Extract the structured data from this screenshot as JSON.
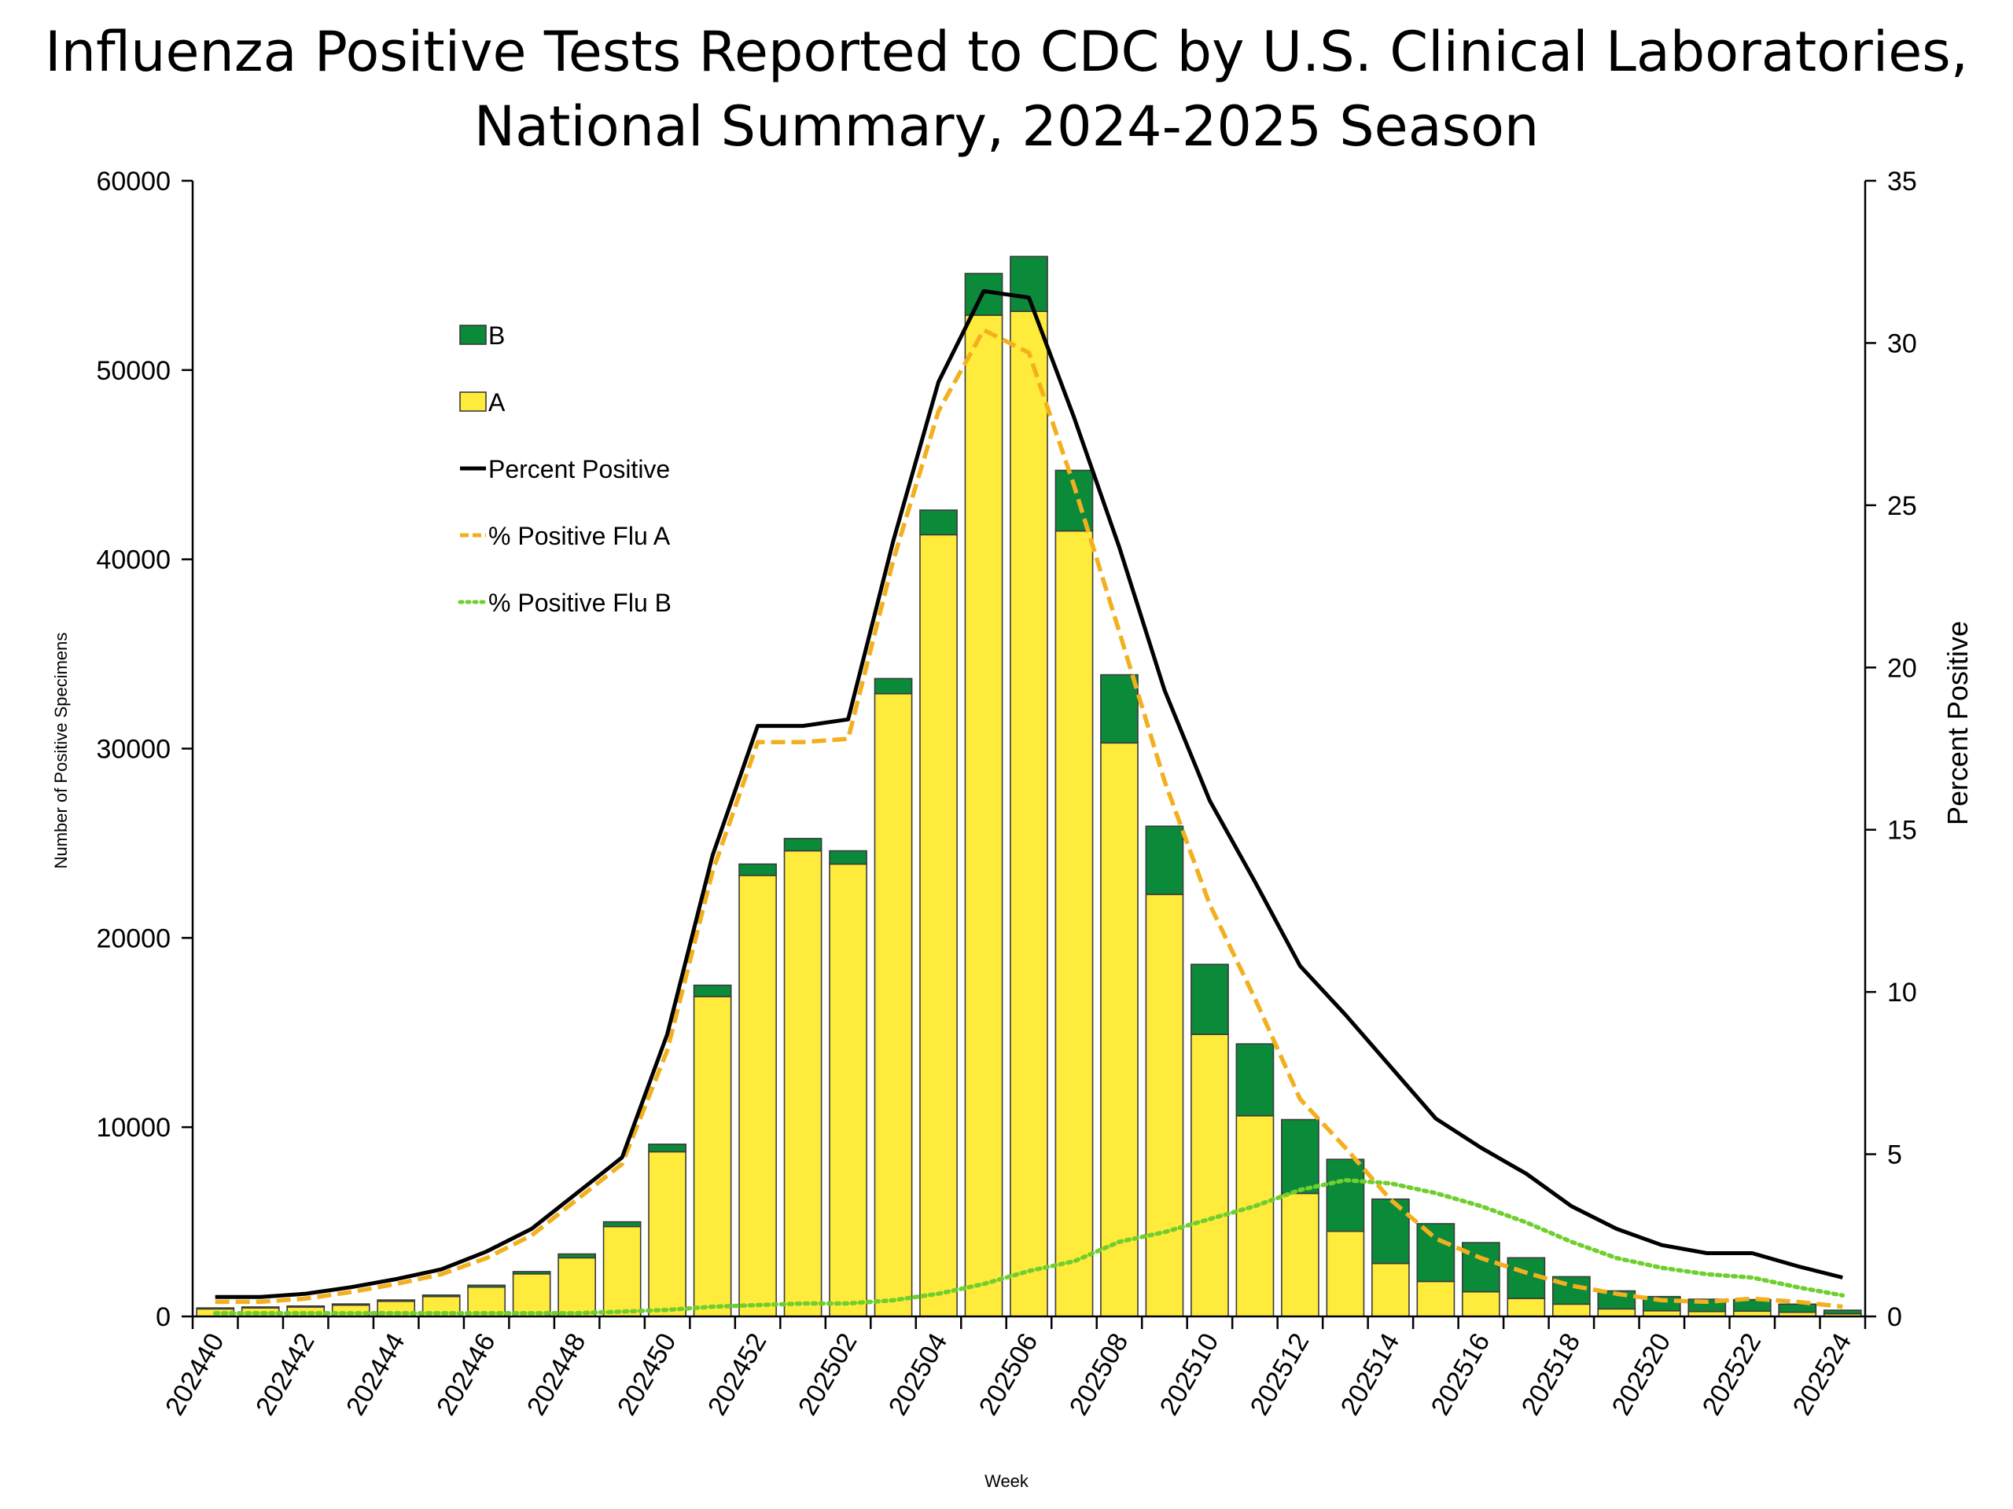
{
  "chart_data": {
    "type": "bar",
    "title": "Influenza Positive Tests Reported to CDC by U.S. Clinical Laboratories,",
    "subtitle": "National Summary, 2024-2025 Season",
    "xlabel": "Week",
    "ylabel": "Number of Positive Specimens",
    "y2label": "Percent Positive",
    "ylim": [
      0,
      60000
    ],
    "y2lim": [
      0,
      35
    ],
    "yticks": [
      "0",
      "10000",
      "20000",
      "30000",
      "40000",
      "50000",
      "60000"
    ],
    "y2ticks": [
      "0",
      "5",
      "10",
      "15",
      "20",
      "25",
      "30",
      "35"
    ],
    "stacked": true,
    "grid": false,
    "legend_position": "upper-left inside plot",
    "categories": [
      "202440",
      "202441",
      "202442",
      "202443",
      "202444",
      "202445",
      "202446",
      "202447",
      "202448",
      "202449",
      "202450",
      "202451",
      "202452",
      "202501",
      "202502",
      "202503",
      "202504",
      "202505",
      "202506",
      "202507",
      "202508",
      "202509",
      "202510",
      "202511",
      "202512",
      "202513",
      "202514",
      "202515",
      "202516",
      "202517",
      "202518",
      "202519",
      "202520",
      "202521",
      "202522",
      "202523",
      "202524"
    ],
    "x_tick_labels": [
      "202440",
      "202442",
      "202444",
      "202446",
      "202448",
      "202450",
      "202452",
      "202502",
      "202504",
      "202506",
      "202508",
      "202510",
      "202512",
      "202514",
      "202516",
      "202518",
      "202520",
      "202522",
      "202524"
    ],
    "series": [
      {
        "name": "A",
        "kind": "bar",
        "axis": "left",
        "color": "#FFEB3B",
        "values": [
          400,
          450,
          500,
          600,
          800,
          1050,
          1550,
          2250,
          3100,
          4750,
          8700,
          16900,
          23300,
          24600,
          23900,
          32900,
          41300,
          52900,
          53100,
          41500,
          30300,
          22300,
          14900,
          10600,
          6500,
          4500,
          2800,
          1850,
          1300,
          950,
          650,
          400,
          300,
          260,
          280,
          220,
          140
        ]
      },
      {
        "name": "B",
        "kind": "bar",
        "axis": "left",
        "color": "#0B8A3A",
        "values": [
          50,
          50,
          50,
          60,
          70,
          80,
          100,
          120,
          200,
          250,
          400,
          600,
          600,
          650,
          700,
          800,
          1300,
          2200,
          2900,
          3200,
          3600,
          3600,
          3700,
          3800,
          3900,
          3800,
          3400,
          3050,
          2600,
          2150,
          1450,
          950,
          750,
          650,
          610,
          430,
          190
        ]
      },
      {
        "name": "Percent Positive",
        "kind": "line",
        "axis": "right",
        "color": "#000000",
        "line_style": "solid",
        "values": [
          0.6,
          0.6,
          0.7,
          0.9,
          1.15,
          1.45,
          2.0,
          2.7,
          3.8,
          4.9,
          8.7,
          14.2,
          18.2,
          18.2,
          18.4,
          23.9,
          28.8,
          31.6,
          31.4,
          27.7,
          23.7,
          19.3,
          15.9,
          13.4,
          10.8,
          9.3,
          7.7,
          6.1,
          5.2,
          4.4,
          3.4,
          2.7,
          2.2,
          1.95,
          1.95,
          1.55,
          1.2
        ]
      },
      {
        "name": "% Positive Flu A",
        "kind": "line",
        "axis": "right",
        "color": "#F2B01E",
        "line_style": "dashed",
        "values": [
          0.45,
          0.45,
          0.55,
          0.75,
          1.0,
          1.3,
          1.8,
          2.5,
          3.6,
          4.7,
          8.2,
          13.7,
          17.7,
          17.7,
          17.8,
          23.3,
          27.9,
          30.4,
          29.7,
          25.6,
          21.1,
          16.5,
          12.7,
          9.8,
          6.7,
          5.2,
          3.6,
          2.4,
          1.8,
          1.35,
          0.95,
          0.7,
          0.5,
          0.45,
          0.55,
          0.45,
          0.3
        ]
      },
      {
        "name": "% Positive Flu B",
        "kind": "line",
        "axis": "right",
        "color": "#6FCF2F",
        "line_style": "dotted",
        "values": [
          0.1,
          0.1,
          0.1,
          0.1,
          0.1,
          0.1,
          0.1,
          0.1,
          0.1,
          0.15,
          0.2,
          0.3,
          0.35,
          0.4,
          0.4,
          0.5,
          0.7,
          1.0,
          1.4,
          1.7,
          2.3,
          2.6,
          3.0,
          3.4,
          3.9,
          4.2,
          4.1,
          3.8,
          3.4,
          2.9,
          2.3,
          1.8,
          1.5,
          1.3,
          1.2,
          0.9,
          0.65
        ]
      }
    ],
    "legend": [
      {
        "label": "B",
        "symbol": "box",
        "color": "#0B8A3A"
      },
      {
        "label": "A",
        "symbol": "box",
        "color": "#FFEB3B"
      },
      {
        "label": "Percent Positive",
        "symbol": "line",
        "color": "#000000",
        "line_style": "solid"
      },
      {
        "label": "% Positive Flu A",
        "symbol": "line",
        "color": "#F2B01E",
        "line_style": "dashed"
      },
      {
        "label": "% Positive Flu B",
        "symbol": "line",
        "color": "#6FCF2F",
        "line_style": "dotted"
      }
    ]
  }
}
